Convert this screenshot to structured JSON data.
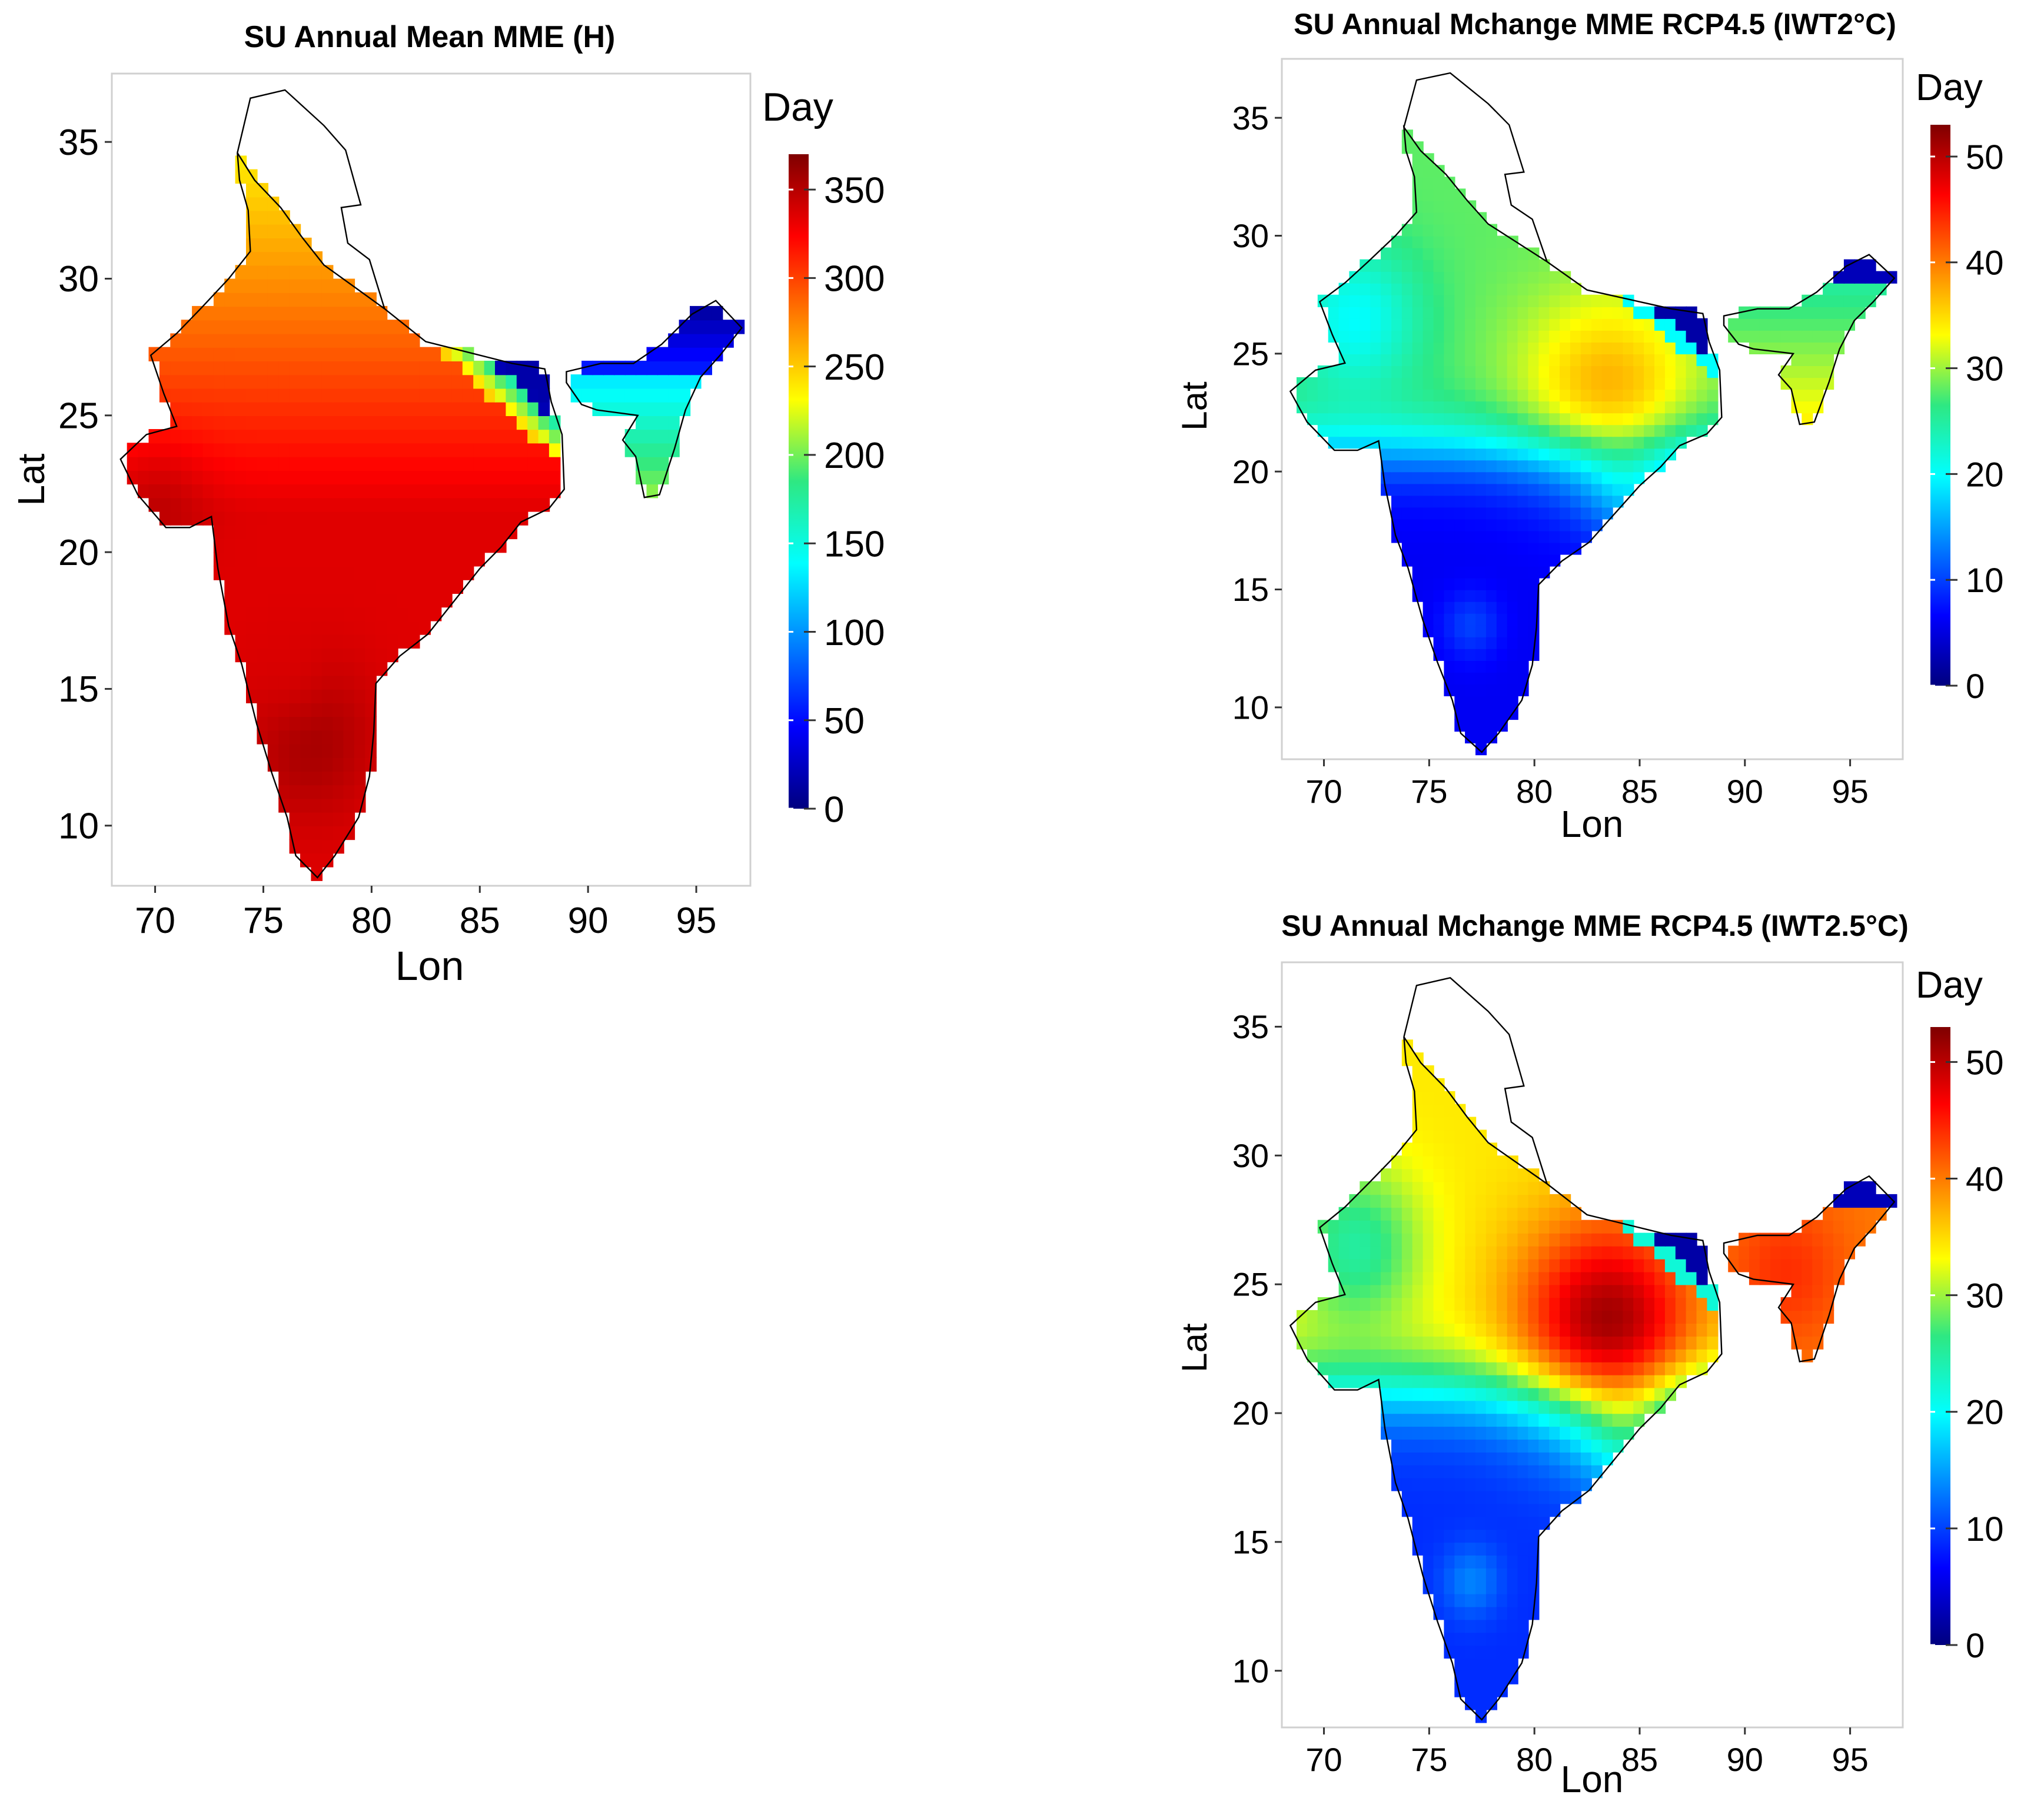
{
  "figure": {
    "panels": [
      {
        "id": "hist",
        "title": "SU Annual Mean MME (H)",
        "xlabel": "Lon",
        "ylabel": "Lat",
        "legend_title": "Day",
        "x_ticks": [
          "70",
          "75",
          "80",
          "85",
          "90",
          "95"
        ],
        "y_ticks": [
          "10",
          "15",
          "20",
          "25",
          "30",
          "35"
        ],
        "colorbar_ticks": [
          "0",
          "50",
          "100",
          "150",
          "200",
          "250",
          "300",
          "350"
        ],
        "colorbar_range": [
          0,
          370
        ]
      },
      {
        "id": "rcp45-2c",
        "title": "SU Annual Mchange MME RCP4.5 (IWT2°C)",
        "xlabel": "Lon",
        "ylabel": "Lat",
        "legend_title": "Day",
        "x_ticks": [
          "70",
          "75",
          "80",
          "85",
          "90",
          "95"
        ],
        "y_ticks": [
          "10",
          "15",
          "20",
          "25",
          "30",
          "35"
        ],
        "colorbar_ticks": [
          "0",
          "10",
          "20",
          "30",
          "40",
          "50"
        ],
        "colorbar_range": [
          0,
          53
        ]
      },
      {
        "id": "rcp45-25c",
        "title": "SU Annual Mchange MME RCP4.5 (IWT2.5°C)",
        "xlabel": "Lon",
        "ylabel": "Lat",
        "legend_title": "Day",
        "x_ticks": [
          "70",
          "75",
          "80",
          "85",
          "90",
          "95"
        ],
        "y_ticks": [
          "10",
          "15",
          "20",
          "25",
          "30",
          "35"
        ],
        "colorbar_ticks": [
          "0",
          "10",
          "20",
          "30",
          "40",
          "50"
        ],
        "colorbar_range": [
          0,
          53
        ]
      }
    ],
    "colormap": [
      "#00007f",
      "#0000ff",
      "#007fff",
      "#00ffff",
      "#2ee882",
      "#ffff00",
      "#ff7f00",
      "#ff0000",
      "#7f0000"
    ]
  },
  "chart_data": [
    {
      "type": "heatmap",
      "title": "SU Annual Mean MME (H)",
      "xlabel": "Lon",
      "ylabel": "Lat",
      "xlim": [
        68,
        97.5
      ],
      "ylim": [
        7.8,
        37.5
      ],
      "colorbar": {
        "label": "Day",
        "min": 0,
        "max": 370,
        "ticks": [
          0,
          50,
          100,
          150,
          200,
          250,
          300,
          350
        ]
      },
      "field_description_values": {
        "south_peninsula": 360,
        "central_india": 330,
        "gangetic_plain": 280,
        "himalayan_foothills": 160,
        "high_mountains": 10,
        "northeast_hills": 60
      }
    },
    {
      "type": "heatmap",
      "title": "SU Annual Mchange MME RCP4.5 (IWT2°C)",
      "xlabel": "Lon",
      "ylabel": "Lat",
      "xlim": [
        68,
        97.5
      ],
      "ylim": [
        7.8,
        37.5
      ],
      "colorbar": {
        "label": "Day",
        "min": 0,
        "max": 53,
        "ticks": [
          0,
          10,
          20,
          30,
          40,
          50
        ]
      },
      "field_description_values": {
        "south_peninsula": 8,
        "deccan": 14,
        "central_india": 30,
        "gangetic_plain": 32,
        "northwest": 22,
        "northeast": 30,
        "himalaya": 2
      }
    },
    {
      "type": "heatmap",
      "title": "SU Annual Mchange MME RCP4.5 (IWT2.5°C)",
      "xlabel": "Lon",
      "ylabel": "Lat",
      "xlim": [
        68,
        97.5
      ],
      "ylim": [
        7.8,
        37.5
      ],
      "colorbar": {
        "label": "Day",
        "min": 0,
        "max": 53,
        "ticks": [
          0,
          10,
          20,
          30,
          40,
          50
        ]
      },
      "field_description_values": {
        "south_peninsula": 10,
        "deccan": 17,
        "central_india": 40,
        "gangetic_plain": 36,
        "northwest": 24,
        "northeast": 42,
        "himalaya": 3
      }
    }
  ]
}
